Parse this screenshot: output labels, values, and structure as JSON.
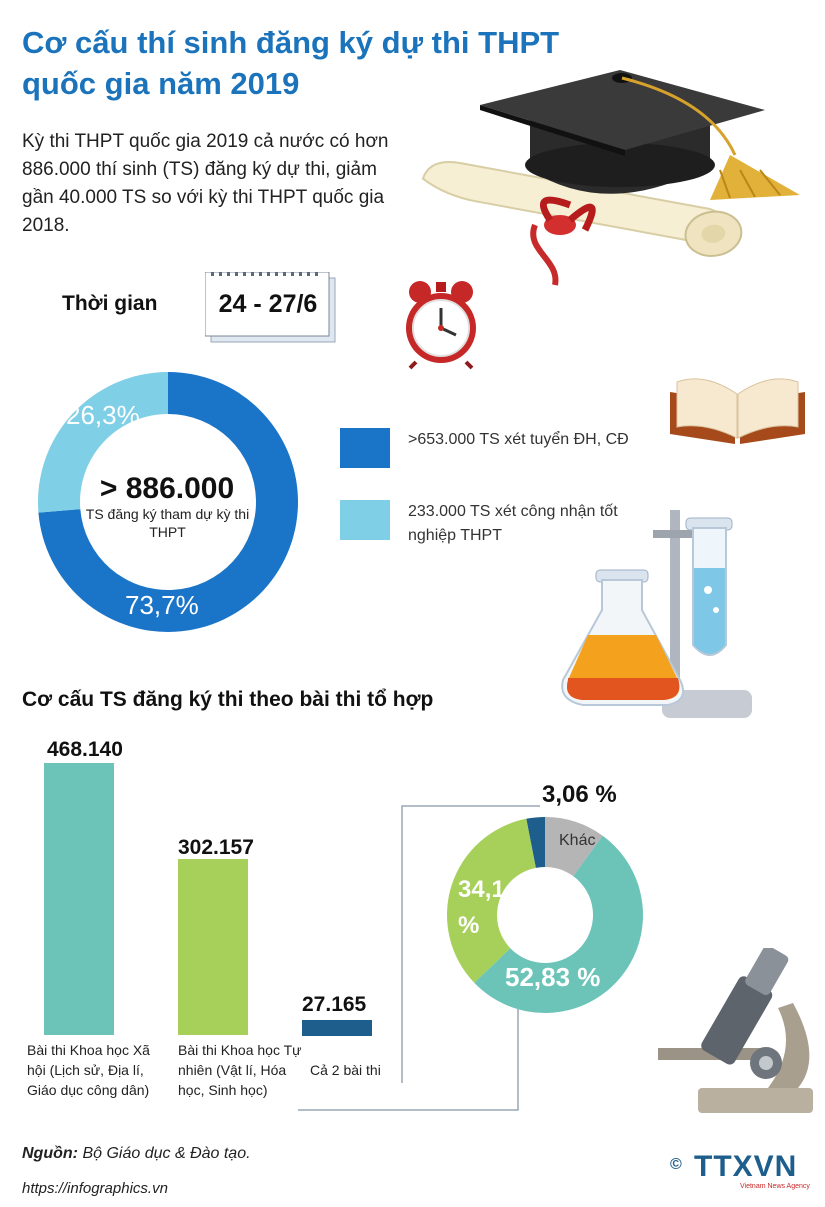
{
  "header": {
    "title": "Cơ cấu thí sinh đăng ký dự thi THPT quốc gia năm 2019",
    "intro": "Kỳ thi THPT quốc gia 2019 cả nước có hơn 886.000 thí sinh (TS) đăng ký dự thi, giảm gần 40.000 TS so với kỳ thi THPT quốc gia 2018."
  },
  "time": {
    "label": "Thời gian",
    "value": "24 - 27/6"
  },
  "chart_data": [
    {
      "type": "pie",
      "center_value": "> 886.000",
      "center_label": "TS đăng ký tham dự kỳ thi THPT",
      "slices": [
        {
          "label": ">653.000 TS xét tuyển ĐH, CĐ",
          "value": 73.7,
          "display": "73,7%",
          "color": "#1a75c8"
        },
        {
          "label": "233.000 TS xét công nhận tốt nghiệp THPT",
          "value": 26.3,
          "display": "26,3%",
          "color": "#7fcfe6"
        }
      ]
    },
    {
      "type": "bar",
      "title": "Cơ cấu TS đăng ký thi theo bài thi tổ hợp",
      "categories": [
        "Bài thi Khoa học Xã hội (Lịch sử, Địa lí, Giáo dục công dân)",
        "Bài thi Khoa học Tự nhiên (Vật lí, Hóa học, Sinh học)",
        "Cả 2 bài thi"
      ],
      "values": [
        468140,
        302157,
        27165
      ],
      "display": [
        "468.140",
        "302.157",
        "27.165"
      ],
      "colors": [
        "#6cc4b8",
        "#a7d05a",
        "#1e5e8c"
      ]
    },
    {
      "type": "pie",
      "slices": [
        {
          "label": "",
          "value": 52.83,
          "display": "52,83 %",
          "color": "#6cc4b8"
        },
        {
          "label": "",
          "value": 34.1,
          "display": "34,1 %",
          "color": "#a7d05a"
        },
        {
          "label": "",
          "value": 3.06,
          "display": "3,06 %",
          "color": "#1e5e8c"
        },
        {
          "label": "Khác",
          "value": 10.01,
          "display": "",
          "color": "#b5b5b5"
        }
      ]
    }
  ],
  "footer": {
    "source_label": "Nguồn:",
    "source_text": "Bộ Giáo dục & Đào tạo.",
    "url": "https://infographics.vn",
    "logo_text": "TTXVN",
    "logo_sub": "Vietnam News Agency",
    "copyright": "©"
  }
}
